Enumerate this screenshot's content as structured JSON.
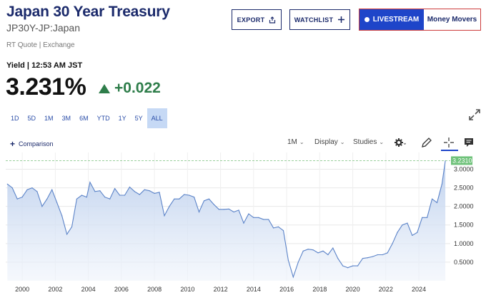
{
  "header": {
    "title": "Japan 30 Year Treasury",
    "symbol": "JP30Y-JP:Japan",
    "quote_source": "RT Quote | Exchange"
  },
  "actions": {
    "export_label": "EXPORT",
    "watchlist_label": "WATCHLIST",
    "livestream_label": "LIVESTREAM",
    "money_movers_label": "Money Movers"
  },
  "quote": {
    "yield_label": "Yield | 12:53 AM JST",
    "value": "3.231%",
    "change": "+0.022"
  },
  "ranges": [
    "1D",
    "5D",
    "1M",
    "3M",
    "6M",
    "YTD",
    "1Y",
    "5Y",
    "ALL"
  ],
  "active_range": "ALL",
  "toolbar": {
    "comparison_label": "Comparison",
    "interval_label": "1M",
    "display_label": "Display",
    "studies_label": "Studies"
  },
  "icons": {
    "export": "share-icon",
    "watchlist": "plus-icon",
    "expand": "expand-icon",
    "settings": "gear-icon",
    "draw": "pencil-icon",
    "crosshair": "crosshair-icon",
    "comment": "comment-icon"
  },
  "colors": {
    "brand_navy": "#1b2a6b",
    "live_blue": "#1e45c9",
    "positive_green": "#2e7d4a",
    "line_blue": "#5b83c8",
    "last_price_green": "#6fc27a"
  },
  "chart_data": {
    "type": "area",
    "x_ticks": [
      "2000",
      "2002",
      "2004",
      "2006",
      "2008",
      "2010",
      "2012",
      "2014",
      "2016",
      "2018",
      "2020",
      "2022",
      "2024"
    ],
    "y_ticks": [
      "0.5000",
      "1.0000",
      "1.5000",
      "2.0000",
      "2.5000",
      "3.0000"
    ],
    "ylim": [
      0.0,
      3.45
    ],
    "xlim": [
      1999.0,
      2025.9
    ],
    "last_value_label": "3.2310",
    "last_value": 3.231,
    "grid": true,
    "x": [
      1999.1,
      1999.4,
      1999.7,
      2000.0,
      2000.3,
      2000.6,
      2000.9,
      2001.2,
      2001.5,
      2001.8,
      2002.1,
      2002.4,
      2002.7,
      2003.0,
      2003.3,
      2003.6,
      2003.9,
      2004.1,
      2004.4,
      2004.7,
      2005.0,
      2005.3,
      2005.6,
      2005.9,
      2006.2,
      2006.5,
      2006.8,
      2007.1,
      2007.4,
      2007.7,
      2008.0,
      2008.3,
      2008.6,
      2008.9,
      2009.2,
      2009.5,
      2009.8,
      2010.1,
      2010.4,
      2010.7,
      2011.0,
      2011.3,
      2011.6,
      2011.9,
      2012.2,
      2012.5,
      2012.8,
      2013.1,
      2013.4,
      2013.7,
      2014.0,
      2014.3,
      2014.6,
      2014.9,
      2015.2,
      2015.5,
      2015.8,
      2016.1,
      2016.4,
      2016.7,
      2017.0,
      2017.3,
      2017.6,
      2017.9,
      2018.2,
      2018.5,
      2018.8,
      2019.1,
      2019.4,
      2019.7,
      2020.0,
      2020.3,
      2020.6,
      2020.9,
      2021.2,
      2021.5,
      2021.8,
      2022.1,
      2022.4,
      2022.7,
      2023.0,
      2023.3,
      2023.6,
      2023.9,
      2024.2,
      2024.5,
      2024.8,
      2025.1,
      2025.4,
      2025.6
    ],
    "values": [
      2.6,
      2.5,
      2.2,
      2.25,
      2.45,
      2.5,
      2.4,
      2.0,
      2.2,
      2.45,
      2.1,
      1.75,
      1.25,
      1.45,
      2.2,
      2.3,
      2.25,
      2.65,
      2.4,
      2.42,
      2.25,
      2.2,
      2.48,
      2.3,
      2.3,
      2.52,
      2.4,
      2.32,
      2.45,
      2.42,
      2.35,
      2.38,
      1.75,
      2.0,
      2.2,
      2.2,
      2.32,
      2.3,
      2.25,
      1.85,
      2.15,
      2.2,
      2.05,
      1.92,
      1.92,
      1.93,
      1.85,
      1.9,
      1.55,
      1.8,
      1.7,
      1.7,
      1.65,
      1.65,
      1.42,
      1.45,
      1.35,
      0.55,
      0.1,
      0.5,
      0.8,
      0.85,
      0.83,
      0.75,
      0.8,
      0.7,
      0.88,
      0.6,
      0.4,
      0.35,
      0.4,
      0.4,
      0.6,
      0.62,
      0.65,
      0.7,
      0.7,
      0.75,
      1.0,
      1.3,
      1.5,
      1.55,
      1.22,
      1.3,
      1.7,
      1.7,
      2.2,
      2.1,
      2.6,
      3.23
    ]
  }
}
